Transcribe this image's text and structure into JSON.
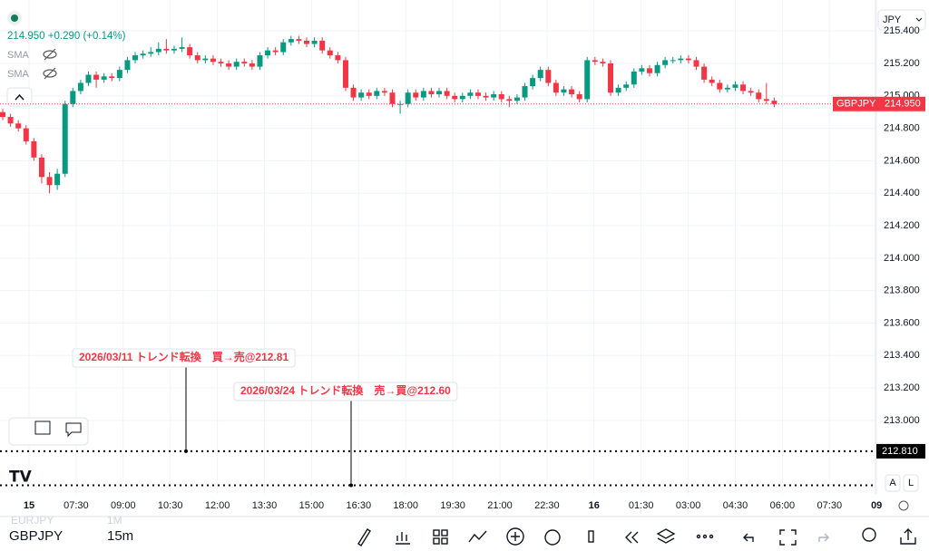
{
  "chart_data": {
    "type": "candlestick",
    "symbol_header": "214.950 +0.290 (+0.14%)",
    "indicators": [
      "SMA",
      "SMA"
    ],
    "currency": "JPY",
    "ylim": [
      212.575,
      215.535
    ],
    "yticks": [
      {
        "value": 215.4,
        "label": "215.400"
      },
      {
        "value": 215.2,
        "label": "215.200"
      },
      {
        "value": 215.0,
        "label": "215.000"
      },
      {
        "value": 214.8,
        "label": "214.800"
      },
      {
        "value": 214.6,
        "label": "214.600"
      },
      {
        "value": 214.4,
        "label": "214.400"
      },
      {
        "value": 214.2,
        "label": "214.200"
      },
      {
        "value": 214.0,
        "label": "214.000"
      },
      {
        "value": 213.8,
        "label": "213.800"
      },
      {
        "value": 213.6,
        "label": "213.600"
      },
      {
        "value": 213.4,
        "label": "213.400"
      },
      {
        "value": 213.2,
        "label": "213.200"
      },
      {
        "value": 213.0,
        "label": "213.000"
      }
    ],
    "grid": true,
    "up_color": "#089981",
    "down_color": "#f23645",
    "time_labels": [
      "15",
      "07:30",
      "09:00",
      "10:30",
      "12:00",
      "13:30",
      "15:00",
      "16:30",
      "18:00",
      "19:30",
      "21:00",
      "22:30",
      "16",
      "01:30",
      "03:00",
      "04:30",
      "06:00",
      "07:30",
      "09"
    ],
    "open": [
      214.9,
      214.87,
      214.83,
      214.8,
      214.72,
      214.62,
      214.5,
      214.45,
      214.52,
      214.95,
      215.03,
      215.08,
      215.13,
      215.1,
      215.12,
      215.11,
      215.16,
      215.22,
      215.25,
      215.26,
      215.27,
      215.29,
      215.28,
      215.29,
      215.3,
      215.25,
      215.22,
      215.23,
      215.21,
      215.2,
      215.18,
      215.21,
      215.2,
      215.18,
      215.25,
      215.28,
      215.27,
      215.33,
      215.35,
      215.34,
      215.32,
      215.34,
      215.28,
      215.25,
      215.22,
      215.05,
      214.99,
      215.02,
      215.0,
      215.03,
      215.02,
      214.95,
      214.95,
      215.02,
      214.99,
      215.03,
      215.01,
      215.03,
      215.0,
      214.98,
      215.0,
      215.02,
      215.0,
      214.99,
      215.01,
      214.98,
      214.97,
      214.99,
      215.06,
      215.11,
      215.16,
      215.08,
      215.02,
      215.04,
      215.01,
      214.98,
      215.22,
      215.21,
      215.2,
      215.02,
      215.05,
      215.07,
      215.15,
      215.17,
      215.14,
      215.19,
      215.22,
      215.22,
      215.23,
      215.22,
      215.18,
      215.1,
      215.08,
      215.04,
      215.05,
      215.07,
      215.03,
      215.02,
      214.98,
      214.97
    ],
    "high": [
      214.92,
      214.89,
      214.85,
      214.82,
      214.74,
      214.64,
      214.53,
      214.55,
      214.97,
      215.05,
      215.1,
      215.15,
      215.15,
      215.14,
      215.14,
      215.18,
      215.24,
      215.27,
      215.28,
      215.3,
      215.33,
      215.35,
      215.31,
      215.36,
      215.32,
      215.27,
      215.25,
      215.25,
      215.23,
      215.22,
      215.23,
      215.23,
      215.22,
      215.27,
      215.3,
      215.3,
      215.35,
      215.37,
      215.37,
      215.36,
      215.36,
      215.36,
      215.3,
      215.27,
      215.24,
      215.07,
      215.04,
      215.04,
      215.05,
      215.05,
      215.04,
      214.97,
      215.04,
      215.04,
      215.05,
      215.05,
      215.05,
      215.05,
      215.02,
      215.02,
      215.04,
      215.04,
      215.02,
      215.03,
      215.03,
      215.0,
      215.01,
      215.08,
      215.13,
      215.18,
      215.18,
      215.1,
      215.06,
      215.06,
      215.03,
      215.24,
      215.24,
      215.23,
      215.22,
      215.07,
      215.09,
      215.17,
      215.19,
      215.19,
      215.21,
      215.24,
      215.24,
      215.25,
      215.25,
      215.24,
      215.2,
      215.12,
      215.1,
      215.07,
      215.09,
      215.09,
      215.05,
      215.04,
      215.08,
      214.99
    ],
    "low": [
      214.85,
      214.81,
      214.78,
      214.7,
      214.6,
      214.46,
      214.4,
      214.42,
      214.5,
      214.93,
      215.01,
      215.06,
      215.05,
      215.08,
      215.09,
      215.09,
      215.14,
      215.2,
      215.23,
      215.24,
      215.25,
      215.26,
      215.26,
      215.27,
      215.23,
      215.2,
      215.2,
      215.19,
      215.18,
      215.16,
      215.16,
      215.18,
      215.16,
      215.16,
      215.23,
      215.25,
      215.25,
      215.31,
      215.32,
      215.3,
      215.3,
      215.26,
      215.23,
      215.2,
      215.03,
      214.97,
      214.97,
      214.98,
      214.98,
      215.0,
      214.93,
      214.89,
      214.93,
      214.97,
      214.97,
      214.99,
      214.99,
      214.98,
      214.96,
      214.96,
      214.98,
      214.98,
      214.97,
      214.97,
      214.96,
      214.93,
      214.95,
      214.97,
      215.04,
      215.09,
      215.06,
      215.0,
      215.0,
      214.99,
      214.96,
      214.96,
      215.19,
      215.18,
      215.0,
      215.0,
      215.03,
      215.05,
      215.13,
      215.12,
      215.12,
      215.17,
      215.2,
      215.2,
      215.2,
      215.16,
      215.08,
      215.06,
      215.02,
      215.02,
      215.03,
      215.01,
      215.0,
      214.96,
      214.95,
      214.93
    ],
    "close": [
      214.87,
      214.83,
      214.8,
      214.72,
      214.62,
      214.5,
      214.45,
      214.52,
      214.95,
      215.03,
      215.08,
      215.13,
      215.1,
      215.12,
      215.11,
      215.16,
      215.22,
      215.25,
      215.26,
      215.27,
      215.29,
      215.28,
      215.29,
      215.3,
      215.25,
      215.22,
      215.23,
      215.21,
      215.2,
      215.18,
      215.21,
      215.2,
      215.18,
      215.25,
      215.28,
      215.27,
      215.33,
      215.35,
      215.34,
      215.32,
      215.34,
      215.28,
      215.25,
      215.22,
      215.05,
      214.99,
      215.02,
      215.0,
      215.03,
      215.02,
      214.95,
      214.95,
      215.02,
      214.99,
      215.03,
      215.01,
      215.03,
      215.0,
      214.98,
      215.0,
      215.02,
      215.0,
      214.99,
      215.01,
      214.98,
      214.97,
      214.99,
      215.06,
      215.11,
      215.16,
      215.08,
      215.02,
      215.04,
      215.01,
      214.98,
      215.22,
      215.21,
      215.2,
      215.02,
      215.05,
      215.07,
      215.15,
      215.17,
      215.14,
      215.19,
      215.22,
      215.22,
      215.23,
      215.22,
      215.18,
      215.1,
      215.08,
      215.04,
      215.05,
      215.07,
      215.03,
      215.02,
      214.98,
      214.97,
      214.95
    ],
    "price_tag": {
      "name": "GBPJPY",
      "value": 214.95,
      "label": "214.950"
    },
    "hlines": [
      {
        "value": 212.81,
        "label": "212.810"
      },
      {
        "value": 212.6
      }
    ],
    "annotations": [
      "2026/03/11 トレンド転換　買→売@212.81",
      "2026/03/24 トレンド転換　売→買@212.60"
    ]
  },
  "ui": {
    "scale_buttons": [
      "A",
      "L"
    ],
    "symbol": "GBPJPY",
    "interval": "15m",
    "ghost_symbol": "EURJPY",
    "ghost_interval": "1M"
  }
}
